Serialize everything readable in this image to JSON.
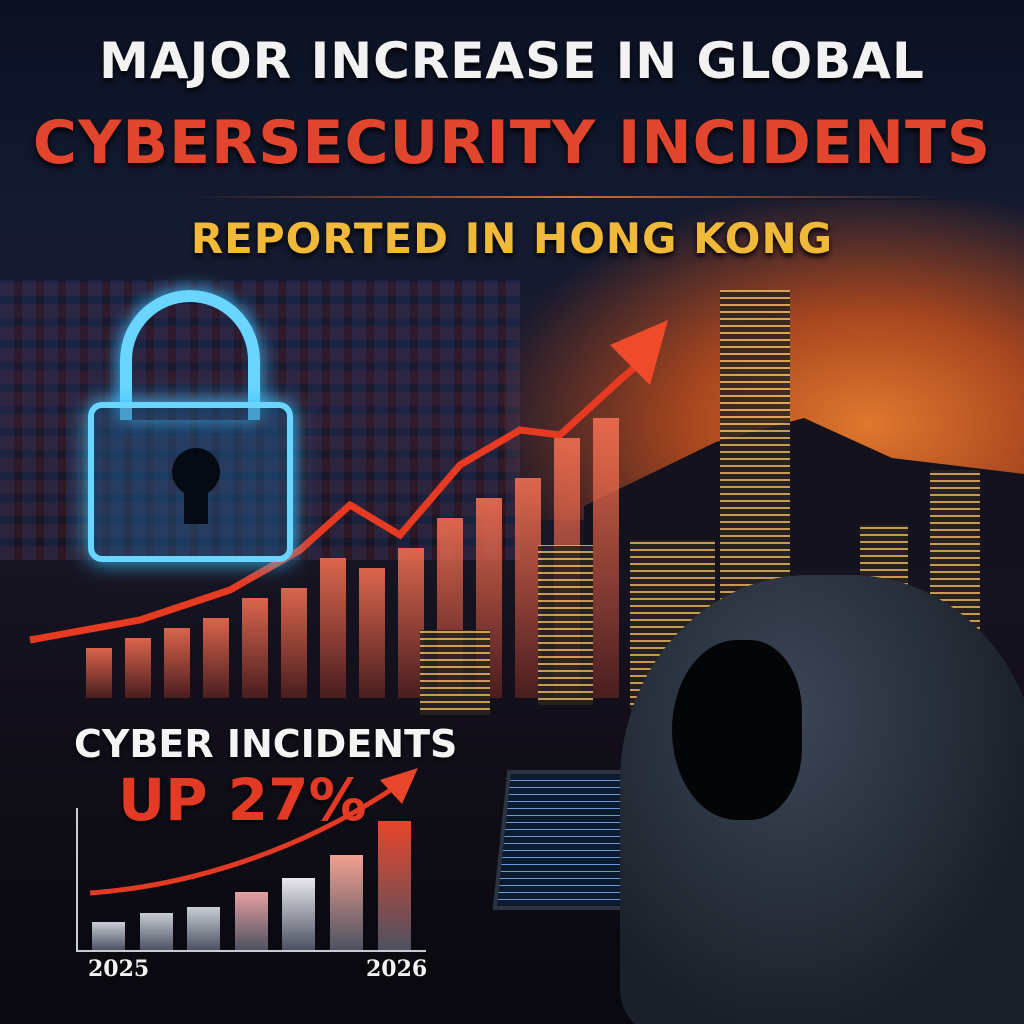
{
  "headline": {
    "line1": "MAJOR INCREASE IN GLOBAL",
    "line2": "CYBERSECURITY INCIDENTS",
    "line3": "REPORTED IN HONG KONG"
  },
  "callout": {
    "line1": "CYBER INCIDENTS",
    "line2": "UP 27%"
  },
  "colors": {
    "title_white": "#f2f2f2",
    "title_red": "#e2452d",
    "title_yellow": "#f0b93a",
    "arrow_red": "#e23a24",
    "lock_glow": "#6ad6ff"
  },
  "icons": [
    "padlock-icon",
    "trend-arrow-icon"
  ],
  "chart_data": {
    "type": "bar",
    "categories": [
      "2025",
      "",
      "",
      "",
      "",
      "",
      "2026"
    ],
    "values": [
      0.22,
      0.29,
      0.33,
      0.45,
      0.56,
      0.74,
      1.0
    ],
    "x_tick_labels": [
      "2025",
      "2026"
    ],
    "trend_arrow": "rising",
    "grid": true
  }
}
